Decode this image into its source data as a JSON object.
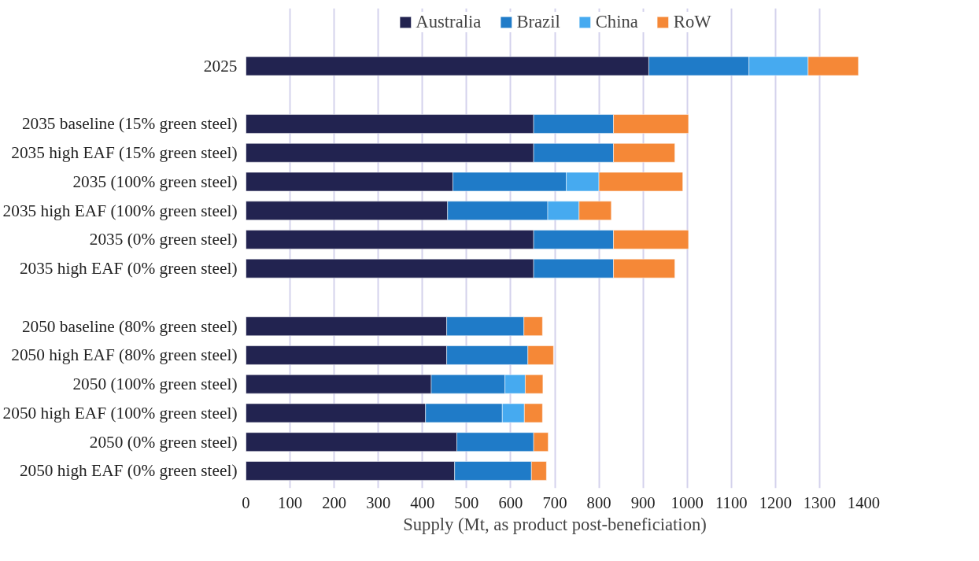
{
  "chart_data": {
    "type": "bar",
    "orientation": "horizontal",
    "stacked": true,
    "xlabel": "Supply (Mt, as product post-beneficiation)",
    "categories": [
      "2025",
      null,
      "2035 baseline (15% green steel)",
      "2035 high EAF (15% green steel)",
      "2035 (100% green steel)",
      "2035 high EAF (100% green steel)",
      "2035 (0% green steel)",
      "2035 high EAF (0% green steel)",
      null,
      "2050 baseline (80% green steel)",
      "2050 high EAF (80% green steel)",
      "2050 (100% green steel)",
      "2050 high EAF (100% green steel)",
      "2050 (0% green steel)",
      "2050 high EAF (0% green steel)"
    ],
    "series": [
      {
        "name": "Australia",
        "color": "#222350",
        "values": [
          913,
          null,
          652,
          652,
          469,
          457,
          652,
          652,
          null,
          455,
          455,
          420,
          407,
          478,
          473
        ]
      },
      {
        "name": "Brazil",
        "color": "#1f7bc8",
        "values": [
          227,
          null,
          181,
          181,
          257,
          227,
          181,
          181,
          null,
          175,
          184,
          167,
          174,
          174,
          174
        ]
      },
      {
        "name": "China",
        "color": "#46aaf0",
        "values": [
          134,
          null,
          null,
          null,
          74,
          71,
          null,
          null,
          null,
          null,
          null,
          46,
          50,
          null,
          null
        ]
      },
      {
        "name": "RoW",
        "color": "#f58837",
        "values": [
          114,
          null,
          170,
          139,
          190,
          73,
          170,
          139,
          null,
          42,
          58,
          40,
          41,
          33,
          34
        ]
      }
    ],
    "xlim": [
      0,
      1400
    ],
    "xticks": [
      0,
      100,
      200,
      300,
      400,
      500,
      600,
      700,
      800,
      900,
      1000,
      1100,
      1200,
      1300,
      1400
    ],
    "grid": "x",
    "legend": "top"
  }
}
